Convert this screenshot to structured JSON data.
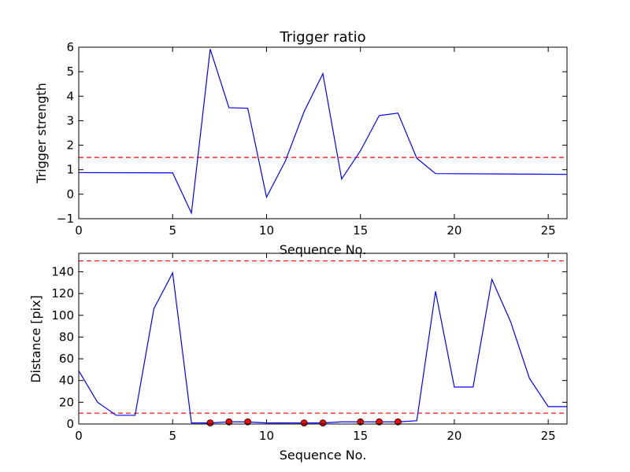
{
  "chart_data": [
    {
      "type": "line",
      "title": "Trigger ratio",
      "xlabel": "Sequence No.",
      "ylabel": "Trigger strength",
      "xlim": [
        0,
        26
      ],
      "ylim": [
        -1,
        6
      ],
      "xticks": [
        0,
        5,
        10,
        15,
        20,
        25
      ],
      "yticks": [
        -1,
        0,
        1,
        2,
        3,
        4,
        5,
        6
      ],
      "ytick_labels": [
        "−1",
        "0",
        "1",
        "2",
        "3",
        "4",
        "5",
        "6"
      ],
      "series": [
        {
          "color": "#0000ff",
          "x": [
            0,
            5,
            6,
            7,
            8,
            9,
            10,
            11,
            12,
            13,
            14,
            15,
            16,
            17,
            18,
            19,
            26
          ],
          "values": [
            0.88,
            0.87,
            -0.77,
            5.92,
            3.53,
            3.51,
            -0.12,
            1.35,
            3.37,
            4.92,
            0.62,
            1.77,
            3.21,
            3.31,
            1.47,
            0.84,
            0.81
          ]
        }
      ],
      "hlines": [
        {
          "y": 1.5,
          "color": "#ff0000",
          "style": "dashed"
        }
      ],
      "grid": false
    },
    {
      "type": "line",
      "title": "",
      "xlabel": "Sequence No.",
      "ylabel": "Distance [pix]",
      "xlim": [
        0,
        26
      ],
      "ylim": [
        0,
        157
      ],
      "xticks": [
        0,
        5,
        10,
        15,
        20,
        25
      ],
      "yticks": [
        0,
        20,
        40,
        60,
        80,
        100,
        120,
        140
      ],
      "ytick_labels": [
        "0",
        "20",
        "40",
        "60",
        "80",
        "100",
        "120",
        "140"
      ],
      "series": [
        {
          "color": "#0000ff",
          "x": [
            0,
            1,
            2,
            3,
            4,
            5,
            6,
            7,
            8,
            9,
            10,
            11,
            12,
            13,
            14,
            15,
            16,
            17,
            18,
            19,
            20,
            21,
            22,
            23,
            24,
            25,
            26
          ],
          "values": [
            49,
            20,
            8,
            8,
            106,
            139,
            1,
            1,
            2,
            2,
            1,
            1,
            1,
            1,
            2,
            2,
            2,
            2,
            3,
            122,
            34,
            34,
            133,
            94,
            42,
            16,
            16
          ]
        }
      ],
      "markers": {
        "color": "#ff0000",
        "x": [
          7,
          8,
          9,
          12,
          13,
          15,
          16,
          17
        ],
        "values": [
          1,
          2,
          2,
          1,
          1,
          2,
          2,
          2
        ]
      },
      "hlines": [
        {
          "y": 150,
          "color": "#ff0000",
          "style": "dashed"
        },
        {
          "y": 10,
          "color": "#ff0000",
          "style": "dashed"
        }
      ],
      "grid": false
    }
  ]
}
